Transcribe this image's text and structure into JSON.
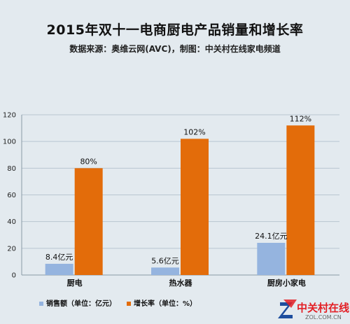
{
  "title": "2015年双十一电商厨电产品销量和增长率",
  "subtitle": "数据来源：奥维云网(AVC)，制图：中关村在线家电频道",
  "colors": {
    "background": "#e3eaef",
    "sales": "#95b4df",
    "growth": "#e36c0a",
    "grid": "#b9c6d0"
  },
  "logo": {
    "cn": "中关村在线",
    "en": "ZOL.COM.CN"
  },
  "chart_data": {
    "type": "bar",
    "categories": [
      "厨电",
      "热水器",
      "厨房小家电"
    ],
    "series": [
      {
        "name": "销售额（单位：亿元）",
        "values": [
          8.4,
          5.6,
          24.1
        ],
        "labels": [
          "8.4亿元",
          "5.6亿元",
          "24.1亿元"
        ]
      },
      {
        "name": "增长率（单位：%）",
        "values": [
          80,
          102,
          112
        ],
        "labels": [
          "80%",
          "102%",
          "112%"
        ]
      }
    ],
    "ylim": [
      0,
      120
    ],
    "yticks": [
      "0",
      "20",
      "40",
      "60",
      "80",
      "100",
      "120"
    ],
    "grid": true,
    "legend": "bottom-left"
  }
}
